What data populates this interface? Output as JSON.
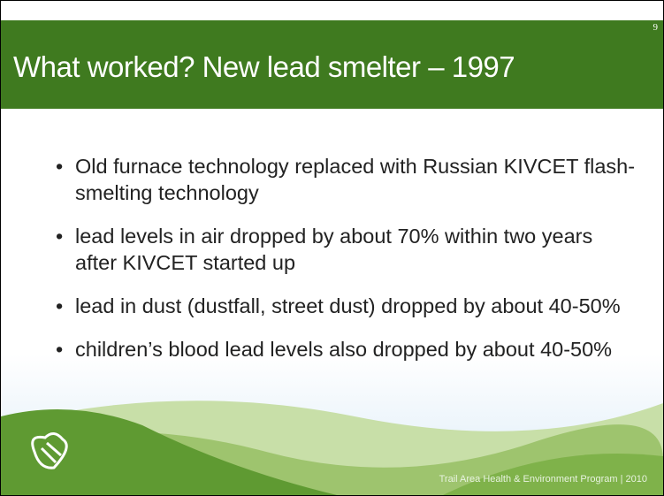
{
  "page_number": "9",
  "title": "What worked? New lead smelter – 1997",
  "bullets": [
    "Old furnace technology replaced with Russian KIVCET flash-smelting technology",
    "lead levels in air dropped by about 70% within two years after KIVCET started up",
    "lead in dust (dustfall, street dust) dropped by about 40-50%",
    "children’s blood lead levels also dropped by about 40-50%"
  ],
  "footer": "Trail Area Health & Environment Program | 2010"
}
